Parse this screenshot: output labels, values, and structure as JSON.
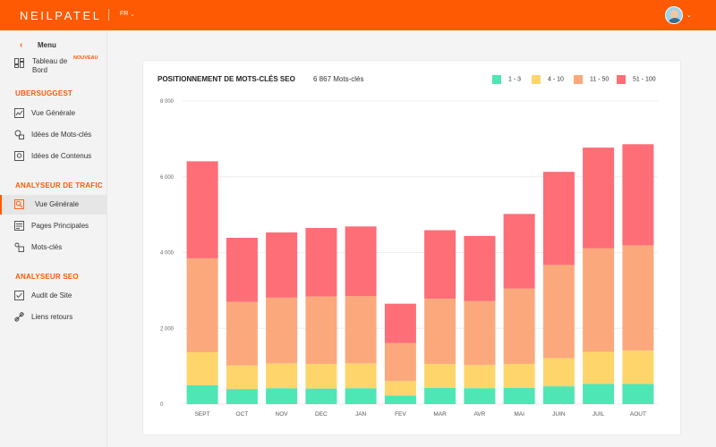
{
  "header": {
    "logo": "NEILPATEL",
    "lang": "FR",
    "lang_chevron": "⌄",
    "avatar_chevron": "⌄"
  },
  "sidebar": {
    "back_icon": "‹",
    "menu_label": "Menu",
    "dashboard": {
      "label": "Tableau de Bord",
      "label_line1": "Tableau de",
      "label_line2": "Bord",
      "badge": "NOUVEAU",
      "icon": "dashboard-icon"
    },
    "sections": [
      {
        "title": "UBERSUGGEST",
        "items": [
          {
            "label": "Vue Générale",
            "icon": "overview-icon"
          },
          {
            "label": "Idées de Mots-clés",
            "icon": "keyword-ideas-icon"
          },
          {
            "label": "Idées de Contenus",
            "icon": "content-ideas-icon"
          }
        ]
      },
      {
        "title": "ANALYSEUR DE TRAFIC",
        "items": [
          {
            "label": "Vue Générale",
            "icon": "traffic-overview-icon",
            "active": true
          },
          {
            "label": "Pages Principales",
            "icon": "top-pages-icon"
          },
          {
            "label": "Mots-clés",
            "icon": "keywords-icon"
          }
        ]
      },
      {
        "title": "ANALYSEUR SEO",
        "items": [
          {
            "label": "Audit de Site",
            "icon": "site-audit-icon"
          },
          {
            "label": "Liens retours",
            "icon": "backlinks-icon"
          }
        ]
      }
    ]
  },
  "card": {
    "title": "POSITIONNEMENT DE MOTS-CLÉS SEO",
    "count": "6 867 Mots-clés"
  },
  "chart_data": {
    "type": "bar",
    "stacked": true,
    "categories": [
      "SEPT",
      "OCT",
      "NOV",
      "DEC",
      "JAN",
      "FEV",
      "MAR",
      "AVR",
      "MAI",
      "JUIN",
      "JUIL",
      "AOUT"
    ],
    "series": [
      {
        "name": "1 - 3",
        "color": "#4fe6b5",
        "values": [
          500,
          400,
          420,
          410,
          420,
          230,
          430,
          420,
          430,
          470,
          530,
          530
        ]
      },
      {
        "name": "4 - 10",
        "color": "#fdd56a",
        "values": [
          870,
          620,
          650,
          650,
          650,
          380,
          630,
          610,
          630,
          740,
          850,
          880
        ]
      },
      {
        "name": "11 - 50",
        "color": "#fba97c",
        "values": [
          2480,
          1680,
          1740,
          1780,
          1780,
          1000,
          1720,
          1690,
          1990,
          2460,
          2730,
          2780
        ]
      },
      {
        "name": "51 - 100",
        "color": "#fd6e77",
        "values": [
          2560,
          1690,
          1720,
          1810,
          1840,
          1040,
          1810,
          1720,
          1970,
          2460,
          2660,
          2670
        ]
      }
    ],
    "yticks": [
      "8 000",
      "6 000",
      "4 000",
      "2 000",
      "0"
    ],
    "ytick_values": [
      8000,
      6000,
      4000,
      2000,
      0
    ],
    "ylim": [
      0,
      8000
    ],
    "grid": true,
    "legend_position": "top-right"
  }
}
